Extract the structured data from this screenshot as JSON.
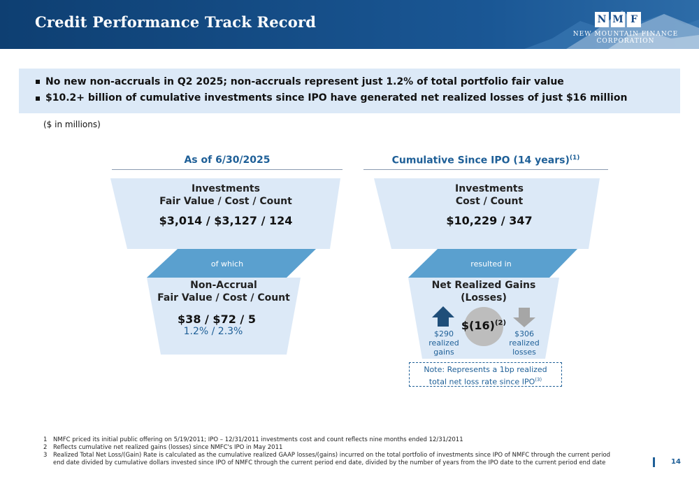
{
  "header": {
    "title": "Credit Performance Track Record",
    "logo_letters": [
      "N",
      "M",
      "F"
    ],
    "logo_line1": "NEW MOUNTAIN FINANCE",
    "logo_line2": "CORPORATION"
  },
  "bullets": [
    "No new non-accruals in Q2 2025; non-accruals represent just 1.2% of total portfolio fair value",
    "$10.2+ billion of cumulative investments since IPO have generated net realized losses of just $16 million"
  ],
  "units": "($ in millions)",
  "left": {
    "heading": "As of 6/30/2025",
    "top_title1": "Investments",
    "top_title2": "Fair Value / Cost / Count",
    "top_value": "$3,014 /  $3,127  /  124",
    "band_label": "of which",
    "bottom_title1": "Non-Accrual",
    "bottom_title2": "Fair Value / Cost / Count",
    "bottom_value": "$38 / $72 / 5",
    "bottom_pct": "1.2%  /  2.3%"
  },
  "right": {
    "heading": "Cumulative Since IPO (14 years)",
    "heading_sup": "(1)",
    "top_title1": "Investments",
    "top_title2": "Cost / Count",
    "top_value": "$10,229 / 347",
    "band_label": "resulted in",
    "bottom_title1": "Net Realized Gains",
    "bottom_title2": "(Losses)",
    "net_value": "$(16)",
    "net_sup": "(2)",
    "gains": [
      "$290",
      "realized",
      "gains"
    ],
    "losses": [
      "$306",
      "realized",
      "losses"
    ],
    "note_line1": "Note: Represents a 1bp realized",
    "note_line2": "total net loss rate since IPO",
    "note_sup": "(3)"
  },
  "footnotes": [
    {
      "num": "1",
      "text": "NMFC priced its initial public offering on 5/19/2011; IPO – 12/31/2011 investments cost and count reflects nine months ended 12/31/2011"
    },
    {
      "num": "2",
      "text": "Reflects cumulative net realized gains (losses) since NMFC's IPO in May 2011"
    },
    {
      "num": "3",
      "text": "Realized Total Net Loss/(Gain) Rate is calculated as the cumulative realized GAAP losses/(gains) incurred on the total portfolio of investments since IPO of NMFC through the current period",
      "text2": "end date divided by cumulative dollars invested since IPO of NMFC through the current period end date, divided by the number of years from the IPO date to the current period end date"
    }
  ],
  "page_number": "14",
  "colors": {
    "header_blue": "#1a5795",
    "light_funnel": "#dce9f7",
    "band_blue": "#5aa0cf",
    "accent_text": "#1e5f97",
    "up_arrow": "#1f4e79",
    "down_arrow": "#a6a6a6",
    "circle": "#bdbdbd"
  }
}
